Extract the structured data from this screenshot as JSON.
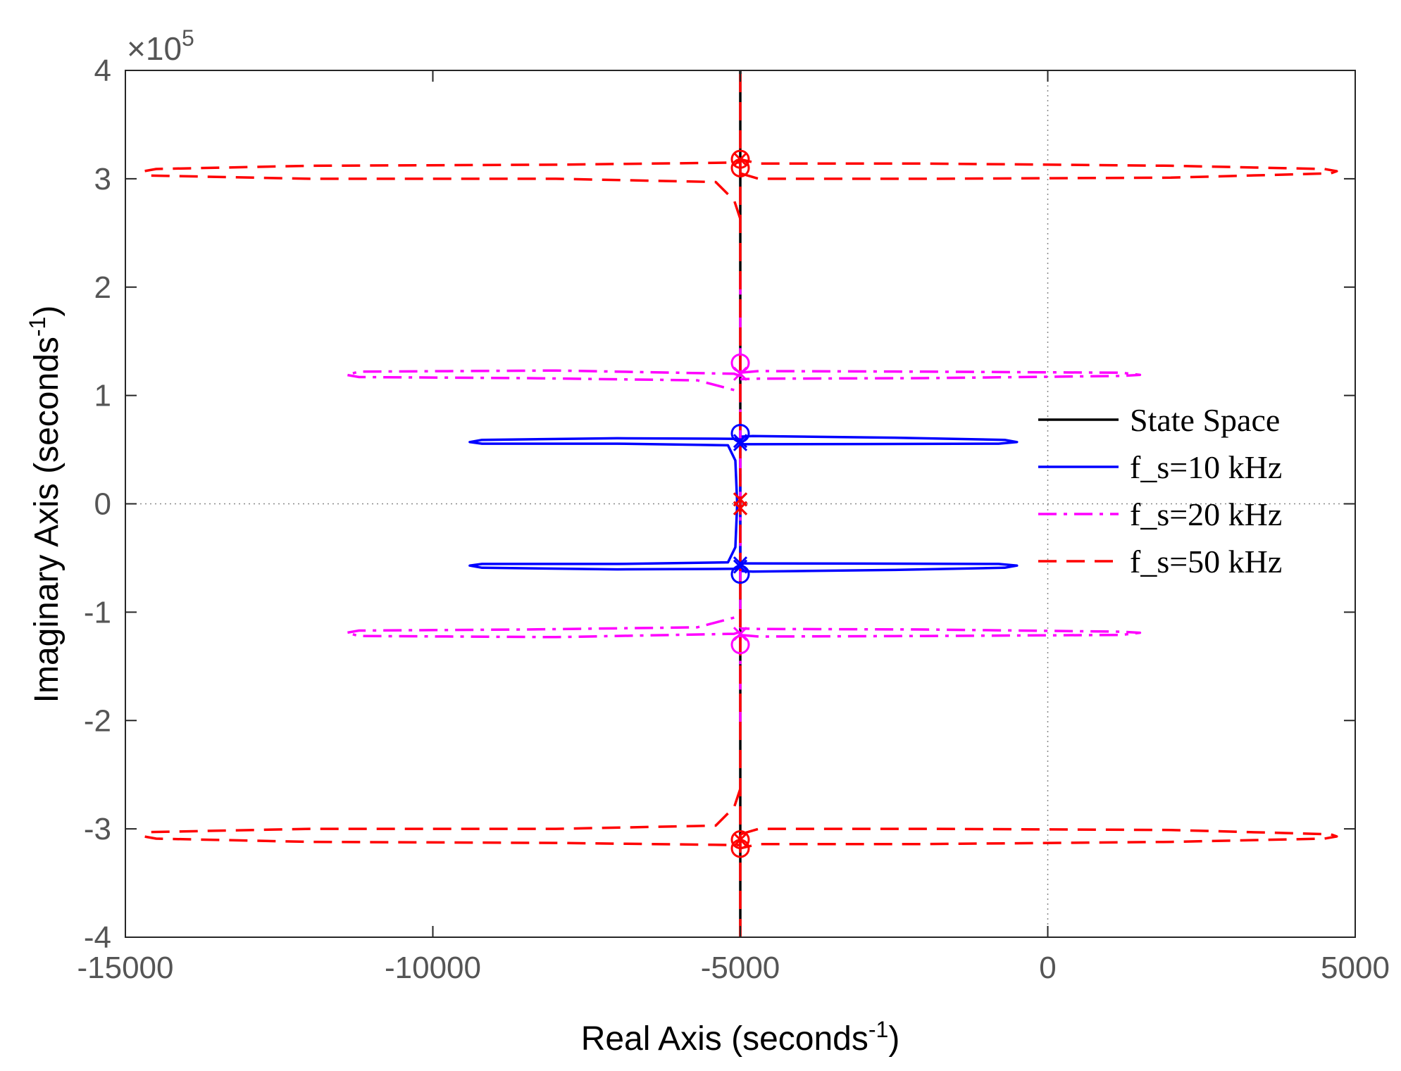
{
  "chart_data": {
    "type": "line",
    "title": "",
    "xlabel_text": "Real Axis (seconds",
    "xlabel_sup": "-1",
    "xlabel_close": ")",
    "ylabel_text": "Imaginary Axis (seconds",
    "ylabel_sup": "-1",
    "ylabel_close": ")",
    "xlim": [
      -15000,
      5000
    ],
    "ylim": [
      -400000,
      400000
    ],
    "y_exponent_prefix": "×10",
    "y_exponent_power": "5",
    "xticks": [
      -15000,
      -10000,
      -5000,
      0,
      5000
    ],
    "xtick_labels": [
      "-15000",
      "-10000",
      "-5000",
      "0",
      "5000"
    ],
    "yticks": [
      -4,
      -3,
      -2,
      -1,
      0,
      1,
      2,
      3,
      4
    ],
    "ytick_labels": [
      "-4",
      "-3",
      "-2",
      "-1",
      "0",
      "1",
      "2",
      "3",
      "4"
    ],
    "legend_position": "center-right",
    "series": [
      {
        "name": "State Space",
        "color": "#000000",
        "dash": "solid",
        "lines": [
          [
            [
              -5000,
              -400000
            ],
            [
              -5000,
              400000
            ]
          ]
        ],
        "poles": [
          [
            -5000,
            4000
          ],
          [
            -5000,
            -4000
          ]
        ],
        "zeros": []
      },
      {
        "name": "f_s=10 kHz",
        "color": "#0000ff",
        "dash": "solid",
        "lines": [
          [
            [
              -5000,
              58000
            ],
            [
              -5050,
              60000
            ],
            [
              -7000,
              60500
            ],
            [
              -9200,
              59000
            ],
            [
              -9400,
              57000
            ],
            [
              -9200,
              55500
            ],
            [
              -7000,
              55500
            ],
            [
              -5200,
              54000
            ],
            [
              -5080,
              40000
            ],
            [
              -5050,
              0
            ]
          ],
          [
            [
              -5000,
              62000
            ],
            [
              -4800,
              62500
            ],
            [
              -2500,
              61000
            ],
            [
              -700,
              59000
            ],
            [
              -500,
              57000
            ],
            [
              -800,
              55500
            ],
            [
              -3000,
              55200
            ],
            [
              -5000,
              55000
            ]
          ],
          [
            [
              -5000,
              -58000
            ],
            [
              -5050,
              -60000
            ],
            [
              -7000,
              -60500
            ],
            [
              -9200,
              -59000
            ],
            [
              -9400,
              -57000
            ],
            [
              -9200,
              -55500
            ],
            [
              -7000,
              -55500
            ],
            [
              -5200,
              -54000
            ],
            [
              -5080,
              -40000
            ],
            [
              -5050,
              0
            ]
          ],
          [
            [
              -5000,
              -62000
            ],
            [
              -4800,
              -62500
            ],
            [
              -2500,
              -61000
            ],
            [
              -700,
              -59000
            ],
            [
              -500,
              -57000
            ],
            [
              -800,
              -55500
            ],
            [
              -3000,
              -55200
            ],
            [
              -5000,
              -55000
            ]
          ],
          [
            [
              -5000,
              75000
            ],
            [
              -5000,
              -75000
            ]
          ]
        ],
        "poles": [
          [
            -5000,
            58000
          ],
          [
            -5000,
            55000
          ],
          [
            -5000,
            -58000
          ],
          [
            -5000,
            -55000
          ]
        ],
        "zeros": [
          [
            -5000,
            65000
          ],
          [
            -5000,
            -65000
          ]
        ]
      },
      {
        "name": "f_s=20 kHz",
        "color": "#ff00ff",
        "dash": "dashdot",
        "lines": [
          [
            [
              -5000,
              118000
            ],
            [
              -5100,
              120000
            ],
            [
              -8000,
              123000
            ],
            [
              -11200,
              122000
            ],
            [
              -11400,
              119000
            ],
            [
              -11200,
              117000
            ],
            [
              -8500,
              116000
            ],
            [
              -5700,
              114000
            ],
            [
              -5100,
              105000
            ]
          ],
          [
            [
              -5000,
              121000
            ],
            [
              -4700,
              122500
            ],
            [
              -2000,
              122000
            ],
            [
              1200,
              121000
            ],
            [
              1500,
              119000
            ],
            [
              1200,
              118000
            ],
            [
              -2000,
              116000
            ],
            [
              -4700,
              115500
            ],
            [
              -5000,
              115000
            ]
          ],
          [
            [
              -5000,
              -118000
            ],
            [
              -5100,
              -120000
            ],
            [
              -8000,
              -123000
            ],
            [
              -11200,
              -122000
            ],
            [
              -11400,
              -119000
            ],
            [
              -11200,
              -117000
            ],
            [
              -8500,
              -116000
            ],
            [
              -5700,
              -114000
            ],
            [
              -5100,
              -105000
            ]
          ],
          [
            [
              -5000,
              -121000
            ],
            [
              -4700,
              -122500
            ],
            [
              -2000,
              -122000
            ],
            [
              1200,
              -121000
            ],
            [
              1500,
              -119000
            ],
            [
              1200,
              -118000
            ],
            [
              -2000,
              -116000
            ],
            [
              -4700,
              -115500
            ],
            [
              -5000,
              -115000
            ]
          ],
          [
            [
              -5000,
              210000
            ],
            [
              -5000,
              -210000
            ]
          ]
        ],
        "poles": [
          [
            -5000,
            120000
          ],
          [
            -5000,
            -120000
          ]
        ],
        "zeros": [
          [
            -5000,
            130000
          ],
          [
            -5000,
            -130000
          ]
        ]
      },
      {
        "name": "f_s=50 kHz",
        "color": "#ff0000",
        "dash": "dash",
        "lines": [
          [
            [
              -5000,
              263000
            ],
            [
              -5100,
              280000
            ],
            [
              -5400,
              297000
            ],
            [
              -8000,
              300000
            ],
            [
              -12000,
              300000
            ],
            [
              -14600,
              303000
            ],
            [
              -14700,
              307000
            ],
            [
              -14500,
              309000
            ],
            [
              -12000,
              312000
            ],
            [
              -8000,
              313000
            ],
            [
              -5000,
              315000
            ]
          ],
          [
            [
              -5000,
              305000
            ],
            [
              -4700,
              300000
            ],
            [
              -2000,
              300000
            ],
            [
              2000,
              301000
            ],
            [
              4600,
              305000
            ],
            [
              4700,
              307000
            ],
            [
              4500,
              309000
            ],
            [
              2000,
              312000
            ],
            [
              -2000,
              314000
            ],
            [
              -4700,
              314000
            ],
            [
              -5000,
              318000
            ]
          ],
          [
            [
              -5000,
              -263000
            ],
            [
              -5100,
              -280000
            ],
            [
              -5400,
              -297000
            ],
            [
              -8000,
              -300000
            ],
            [
              -12000,
              -300000
            ],
            [
              -14600,
              -303000
            ],
            [
              -14700,
              -307000
            ],
            [
              -14500,
              -309000
            ],
            [
              -12000,
              -312000
            ],
            [
              -8000,
              -313000
            ],
            [
              -5000,
              -315000
            ]
          ],
          [
            [
              -5000,
              -305000
            ],
            [
              -4700,
              -300000
            ],
            [
              -2000,
              -300000
            ],
            [
              2000,
              -301000
            ],
            [
              4600,
              -305000
            ],
            [
              4700,
              -307000
            ],
            [
              4500,
              -309000
            ],
            [
              2000,
              -312000
            ],
            [
              -2000,
              -314000
            ],
            [
              -4700,
              -314000
            ],
            [
              -5000,
              -318000
            ]
          ],
          [
            [
              -5000,
              -400000
            ],
            [
              -5000,
              400000
            ]
          ]
        ],
        "poles": [
          [
            -5000,
            4000
          ],
          [
            -5000,
            -4000
          ],
          [
            -5000,
            318000
          ],
          [
            -5000,
            -310000
          ]
        ],
        "zeros": [
          [
            -5000,
            310000
          ],
          [
            -5000,
            318000
          ],
          [
            -5000,
            -310000
          ],
          [
            -5000,
            -318000
          ]
        ]
      }
    ]
  }
}
